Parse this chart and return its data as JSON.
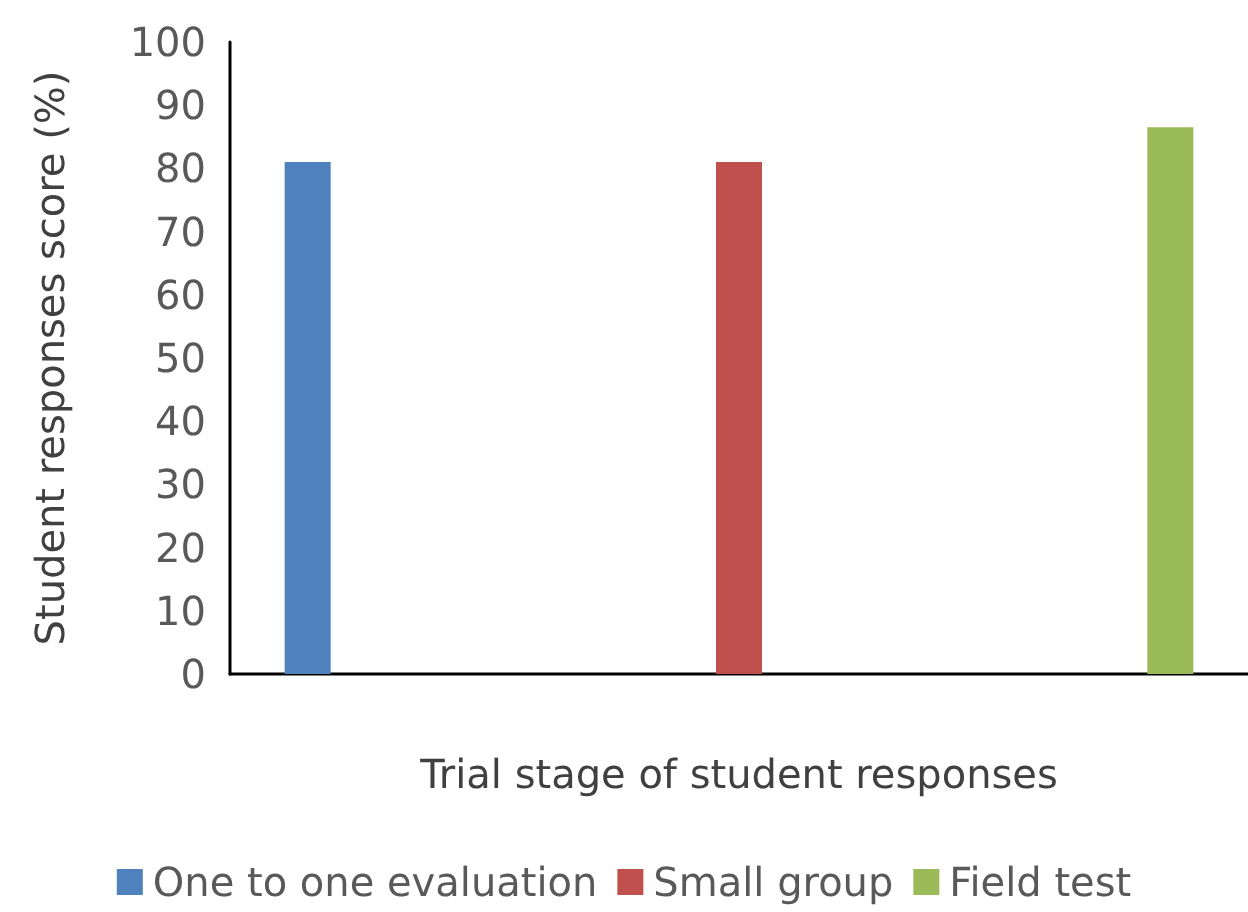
{
  "chart_data": {
    "type": "bar",
    "xlabel": "Trial stage of student responses",
    "ylabel": "Student responses score (%)",
    "categories": [
      null,
      null,
      null
    ],
    "series": [
      {
        "name": "One to one evaluation",
        "color": "#4f81bd",
        "values": [
          81,
          null,
          null
        ]
      },
      {
        "name": "Small group",
        "color": "#c0504d",
        "values": [
          null,
          81,
          null
        ]
      },
      {
        "name": "Field test",
        "color": "#9bbb59",
        "values": [
          null,
          null,
          86.5
        ]
      }
    ],
    "ylim": [
      0,
      100
    ],
    "yticks": [
      0,
      10,
      20,
      30,
      40,
      50,
      60,
      70,
      80,
      90,
      100
    ],
    "grid": false,
    "legend": "bottom"
  }
}
